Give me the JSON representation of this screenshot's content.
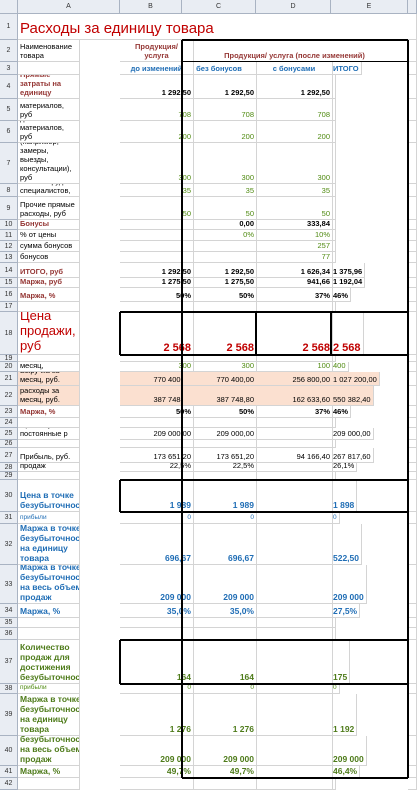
{
  "sheet": {
    "columns": [
      "A",
      "B",
      "C",
      "D",
      "E"
    ],
    "rows": [
      {
        "number": 1,
        "cells": [
          "Расходы за единицу  товара",
          null,
          null,
          null,
          null
        ]
      },
      {
        "number": 2,
        "cells": [
          "Наименование товара",
          "Продукция/ услуга",
          "Продукция/ услуга (после изменений)",
          null,
          null
        ]
      },
      {
        "number": 3,
        "cells": [
          null,
          "до изменений",
          "без бонусов",
          "с бонусами",
          "ИТОГО"
        ]
      },
      {
        "number": 4,
        "cells": [
          "Прямые затраты на единицу",
          "1 292,50",
          "1 292,50",
          "1 292,50",
          null
        ]
      },
      {
        "number": 5,
        "cells": [
          "Расход основных материалов, руб",
          "708",
          "708",
          "708",
          null
        ]
      },
      {
        "number": 6,
        "cells": [
          "Расход дополнительных материалов, руб",
          "200",
          "200",
          "200",
          null
        ]
      },
      {
        "number": 7,
        "cells": [
          "Расходы на услуги (например, замеры, выезды, консультации), руб",
          "300",
          "300",
          "300",
          null
        ]
      },
      {
        "number": 8,
        "cells": [
          "Оплата труда специалистов,",
          "35",
          "35",
          "35",
          null
        ]
      },
      {
        "number": 9,
        "cells": [
          "Прочие прямые расходы, руб",
          "50",
          "50",
          "50",
          null
        ]
      },
      {
        "number": 10,
        "cells": [
          "Бонусы",
          null,
          "0,00",
          "333,84",
          null
        ]
      },
      {
        "number": 11,
        "cells": [
          "% от цены",
          null,
          "0%",
          "10%",
          null
        ]
      },
      {
        "number": 12,
        "cells": [
          "сумма бонусов",
          null,
          null,
          "257",
          null
        ]
      },
      {
        "number": 13,
        "cells": [
          "отчисления с бонусов",
          null,
          null,
          "77",
          null
        ]
      },
      {
        "number": 14,
        "cells": [
          "ИТОГО, руб",
          "1 292,50",
          "1 292,50",
          "1 626,34",
          "1 375,96"
        ]
      },
      {
        "number": 15,
        "cells": [
          "Маржа, руб",
          "1 275,50",
          "1 275,50",
          "941,66",
          "1 192,04"
        ]
      },
      {
        "number": 16,
        "cells": [
          "Маржа, %",
          "50%",
          "50%",
          "37%",
          "46%"
        ]
      },
      {
        "number": 17,
        "cells": [
          null,
          null,
          null,
          null,
          null
        ]
      },
      {
        "number": 18,
        "cells": [
          "Цена продажи, руб",
          "2 568",
          "2 568",
          "2 568",
          "2 568"
        ]
      },
      {
        "number": 19,
        "cells": [
          null,
          null,
          null,
          null,
          null
        ]
      },
      {
        "number": 20,
        "cells": [
          "Количество продаж за месяц,",
          "300",
          "300",
          "100",
          "400"
        ]
      },
      {
        "number": 21,
        "cells": [
          "Выручка  за месяц, руб.",
          "770 400,00",
          "770 400,00",
          "256 800,00",
          "1 027 200,00"
        ]
      },
      {
        "number": 22,
        "cells": [
          "Прямые расходы за месяц, руб.",
          "387 748,80",
          "387 748,80",
          "162 633,60",
          "550 382,40"
        ]
      },
      {
        "number": 23,
        "cells": [
          "Маржа, %",
          "50%",
          "50%",
          "37%",
          "46%"
        ]
      },
      {
        "number": 24,
        "cells": [
          null,
          null,
          null,
          null,
          null
        ]
      },
      {
        "number": 25,
        "cells": [
          "Прочие условно постоянные р",
          "209 000,00",
          "209 000,00",
          null,
          "209 000,00"
        ]
      },
      {
        "number": 26,
        "cells": [
          null,
          null,
          null,
          null,
          null
        ]
      },
      {
        "number": 27,
        "cells": [
          "Прибыль, руб.",
          "173 651,20",
          "173 651,20",
          "94 166,40",
          "267 817,60"
        ]
      },
      {
        "number": 28,
        "cells": [
          "Рентабельность продаж",
          "22,5%",
          "22,5%",
          null,
          "26,1%"
        ]
      },
      {
        "number": 29,
        "cells": [
          null,
          null,
          null,
          null,
          null
        ]
      },
      {
        "number": 30,
        "cells": [
          "Цена в точке безубыточности",
          "1 989",
          "1 989",
          null,
          "1 898"
        ]
      },
      {
        "number": 31,
        "cells": [
          "проверка по прибыли",
          "0",
          "0",
          null,
          "0"
        ]
      },
      {
        "number": 32,
        "cells": [
          "Маржа в точке безубыточности на единицу товара",
          "696,67",
          "696,67",
          null,
          "522,50"
        ]
      },
      {
        "number": 33,
        "cells": [
          "Маржа в точке безубыточности на весь объем продаж",
          "209 000",
          "209 000",
          null,
          "209 000"
        ]
      },
      {
        "number": 34,
        "cells": [
          "Маржа, %",
          "35,0%",
          "35,0%",
          null,
          "27,5%"
        ]
      },
      {
        "number": 35,
        "cells": [
          null,
          null,
          null,
          null,
          null
        ]
      },
      {
        "number": 36,
        "cells": [
          null,
          null,
          null,
          null,
          null
        ]
      },
      {
        "number": 37,
        "cells": [
          "Количество продаж для достижения безубыточности",
          "164",
          "164",
          null,
          "175"
        ]
      },
      {
        "number": 38,
        "cells": [
          "проверка по прибыли",
          "0",
          "0",
          null,
          "0"
        ]
      },
      {
        "number": 39,
        "cells": [
          "Маржа в точке безубыточности на единицу товара",
          "1 276",
          "1 276",
          null,
          "1 192"
        ]
      },
      {
        "number": 40,
        "cells": [
          "Маржа в точке безубыточности на весь объем продаж",
          "209 000",
          "209 000",
          null,
          "209 000"
        ]
      },
      {
        "number": 41,
        "cells": [
          "Маржа, %",
          "49,7%",
          "49,7%",
          null,
          "46,4%"
        ]
      },
      {
        "number": 42,
        "cells": [
          null,
          null,
          null,
          null,
          null
        ]
      }
    ]
  }
}
